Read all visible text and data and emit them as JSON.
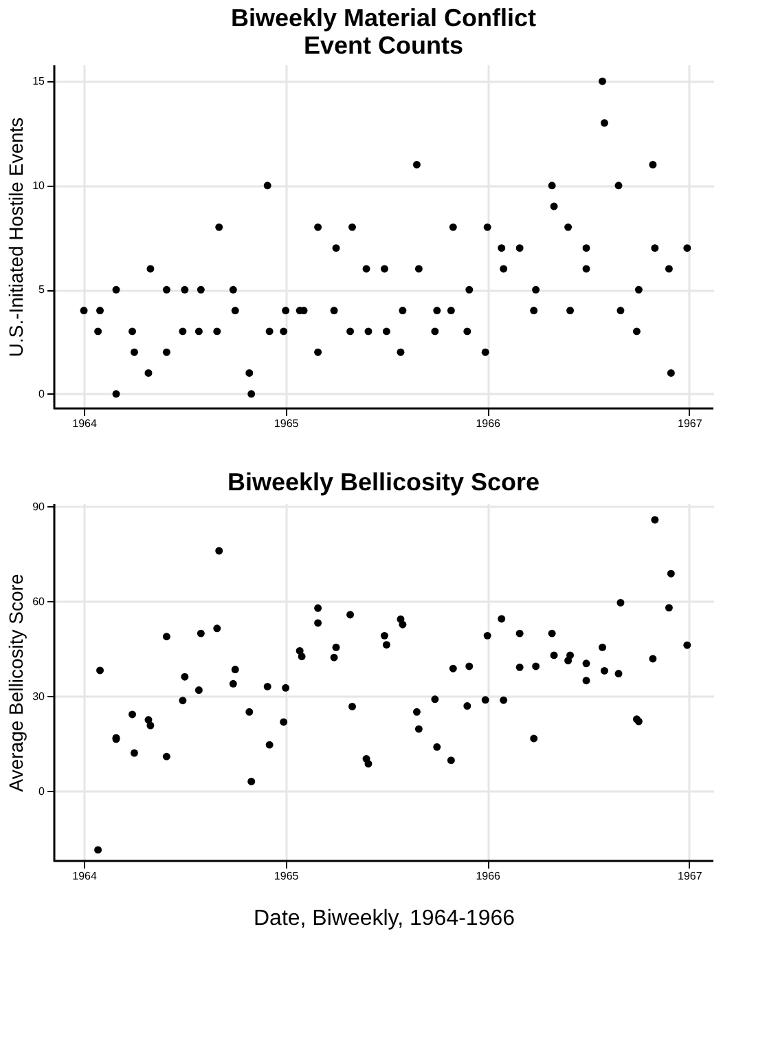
{
  "chart_data": [
    {
      "type": "scatter",
      "title": "Biweekly Material Conflict\nEvent Counts",
      "ylabel": "U.S.-Initiated Hostile Events",
      "xlim": [
        1963.85,
        1967.12
      ],
      "xticks": [
        1964,
        1965,
        1966,
        1967
      ],
      "ylim": [
        -0.7,
        15.8
      ],
      "yticks": [
        0,
        5,
        10,
        15
      ],
      "grid": true,
      "marker": "circle",
      "series": [
        {
          "color": "#000000",
          "x": [
            1964.0,
            1964.07,
            1964.08,
            1964.16,
            1964.16,
            1964.24,
            1964.25,
            1964.32,
            1964.33,
            1964.41,
            1964.41,
            1964.49,
            1964.5,
            1964.57,
            1964.58,
            1964.66,
            1964.67,
            1964.74,
            1964.75,
            1964.82,
            1964.83,
            1964.91,
            1964.92,
            1964.99,
            1965.0,
            1965.07,
            1965.09,
            1965.16,
            1965.16,
            1965.24,
            1965.25,
            1965.32,
            1965.33,
            1965.4,
            1965.41,
            1965.49,
            1965.5,
            1965.57,
            1965.58,
            1965.65,
            1965.66,
            1965.74,
            1965.75,
            1965.82,
            1965.83,
            1965.9,
            1965.91,
            1965.99,
            1966.0,
            1966.07,
            1966.08,
            1966.16,
            1966.23,
            1966.24,
            1966.32,
            1966.33,
            1966.4,
            1966.41,
            1966.49,
            1966.49,
            1966.57,
            1966.58,
            1966.65,
            1966.66,
            1966.74,
            1966.75,
            1966.82,
            1966.83,
            1966.9,
            1966.91,
            1966.99
          ],
          "values": [
            4,
            3,
            4,
            0,
            5,
            3,
            2,
            1,
            6,
            5,
            2,
            3,
            5,
            3,
            5,
            3,
            8,
            5,
            4,
            1,
            0,
            10,
            3,
            3,
            4,
            4,
            4,
            8,
            2,
            4,
            7,
            3,
            8,
            6,
            3,
            6,
            3,
            2,
            4,
            11,
            6,
            3,
            4,
            4,
            8,
            3,
            5,
            2,
            8,
            7,
            6,
            7,
            4,
            5,
            10,
            9,
            8,
            4,
            6,
            7,
            15,
            13,
            10,
            4,
            3,
            5,
            11,
            7,
            6,
            1,
            7
          ]
        }
      ]
    },
    {
      "type": "scatter",
      "title": "Biweekly Bellicosity Score",
      "xlabel": "Date, Biweekly, 1964-1966",
      "ylabel": "Average Bellicosity Score",
      "xlim": [
        1963.85,
        1967.12
      ],
      "xticks": [
        1964,
        1965,
        1966,
        1967
      ],
      "ylim": [
        -22,
        91
      ],
      "yticks": [
        0,
        30,
        60,
        90
      ],
      "grid": true,
      "marker": "circle",
      "series": [
        {
          "color": "#000000",
          "x": [
            1964.07,
            1964.08,
            1964.16,
            1964.16,
            1964.24,
            1964.25,
            1964.32,
            1964.33,
            1964.41,
            1964.41,
            1964.49,
            1964.5,
            1964.57,
            1964.58,
            1964.66,
            1964.67,
            1964.74,
            1964.75,
            1964.82,
            1964.83,
            1964.91,
            1964.92,
            1964.99,
            1965.0,
            1965.07,
            1965.08,
            1965.16,
            1965.16,
            1965.24,
            1965.25,
            1965.32,
            1965.33,
            1965.4,
            1965.41,
            1965.49,
            1965.5,
            1965.57,
            1965.58,
            1965.65,
            1965.66,
            1965.74,
            1965.75,
            1965.82,
            1965.83,
            1965.9,
            1965.91,
            1965.99,
            1966.0,
            1966.07,
            1966.08,
            1966.16,
            1966.16,
            1966.23,
            1966.24,
            1966.32,
            1966.33,
            1966.4,
            1966.41,
            1966.49,
            1966.49,
            1966.57,
            1966.58,
            1966.65,
            1966.66,
            1966.74,
            1966.75,
            1966.82,
            1966.83,
            1966.9,
            1966.91,
            1966.99
          ],
          "values": [
            -18.5,
            38.2,
            16.9,
            16.5,
            24.3,
            12.1,
            22.6,
            20.8,
            11.0,
            48.9,
            28.7,
            36.2,
            32.0,
            49.9,
            51.5,
            76.0,
            34.0,
            38.5,
            25.1,
            3.1,
            33.1,
            14.7,
            21.9,
            32.7,
            44.4,
            42.6,
            57.9,
            53.2,
            42.3,
            45.5,
            55.8,
            26.8,
            10.3,
            8.7,
            49.2,
            46.3,
            54.4,
            52.7,
            25.1,
            19.7,
            29.1,
            14.0,
            9.8,
            38.8,
            27.0,
            39.5,
            28.9,
            49.2,
            54.5,
            28.8,
            39.2,
            49.9,
            16.7,
            39.5,
            49.9,
            43.0,
            41.3,
            43.0,
            35.0,
            40.4,
            45.5,
            38.1,
            37.2,
            59.6,
            22.8,
            22.1,
            41.9,
            85.8,
            58.0,
            68.8,
            46.2
          ]
        }
      ]
    }
  ]
}
